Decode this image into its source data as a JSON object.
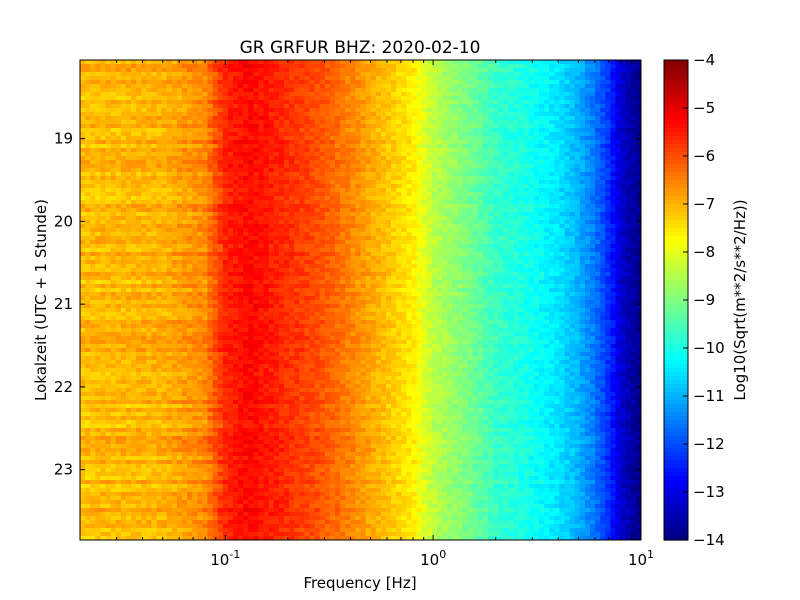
{
  "chart_data": {
    "type": "heatmap",
    "title": "GR GRFUR BHZ: 2020-02-10",
    "xlabel": "Frequency [Hz]",
    "ylabel": "Lokalzeit (UTC + 1 Stunde)",
    "x_scale": "log",
    "xlim": [
      0.02,
      10
    ],
    "ylim": [
      18.05,
      23.85
    ],
    "y_inverted": true,
    "x_ticks": [
      {
        "value": 0.1,
        "base": "10",
        "exp": "-1"
      },
      {
        "value": 1,
        "base": "10",
        "exp": "0"
      },
      {
        "value": 10,
        "base": "10",
        "exp": "1"
      }
    ],
    "y_ticks": [
      19,
      20,
      21,
      22,
      23
    ],
    "colorbar": {
      "label": "Log10(Sqrt(m**2/s**2/Hz))",
      "colormap": "jet",
      "range": [
        -14,
        -4
      ],
      "ticks": [
        -4,
        -5,
        -6,
        -7,
        -8,
        -9,
        -10,
        -11,
        -12,
        -13,
        -14
      ]
    },
    "spectrum_profile": {
      "frequency_hz": [
        0.02,
        0.05,
        0.08,
        0.1,
        0.13,
        0.2,
        0.3,
        0.5,
        0.8,
        1.0,
        1.5,
        2.0,
        3.0,
        4.0,
        5.0,
        6.0,
        7.0,
        8.0,
        10.0
      ],
      "log10_amplitude": [
        -7.1,
        -7.0,
        -6.6,
        -5.6,
        -5.3,
        -5.7,
        -6.1,
        -6.9,
        -7.6,
        -8.4,
        -9.1,
        -9.7,
        -10.1,
        -10.5,
        -11.0,
        -11.6,
        -12.3,
        -13.2,
        -14.0
      ]
    },
    "grid": false,
    "legend": "colorbar-right"
  }
}
